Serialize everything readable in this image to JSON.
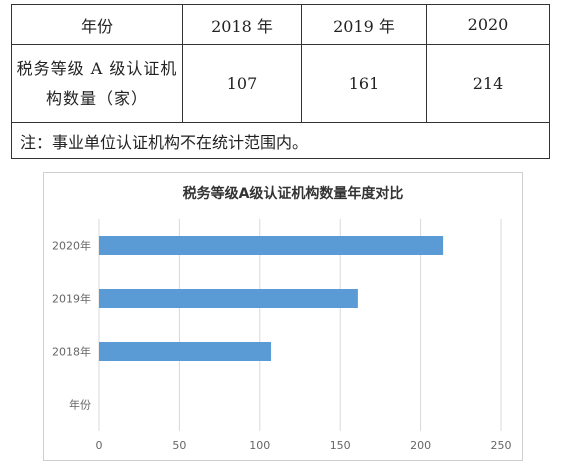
{
  "table": {
    "header": [
      "年份",
      "2018 年",
      "2019 年",
      "2020"
    ],
    "row_label_line1": "税务等级 A 级认证机",
    "row_label_line2": "构数量（家）",
    "values": [
      "107",
      "161",
      "214"
    ],
    "note": "注：事业单位认证机构不在统计范围内。"
  },
  "chart_data": {
    "type": "bar",
    "orientation": "horizontal",
    "title": "税务等级A级认证机构数量年度对比",
    "categories": [
      "年份",
      "2018年",
      "2019年",
      "2020年"
    ],
    "values": [
      null,
      107,
      161,
      214
    ],
    "xlim": [
      0,
      250
    ],
    "xticks": [
      "0",
      "50",
      "100",
      "150",
      "200",
      "250"
    ],
    "xlabel": "",
    "ylabel": "",
    "grid": true,
    "legend": "none",
    "bar_color": "#5b9bd5"
  }
}
